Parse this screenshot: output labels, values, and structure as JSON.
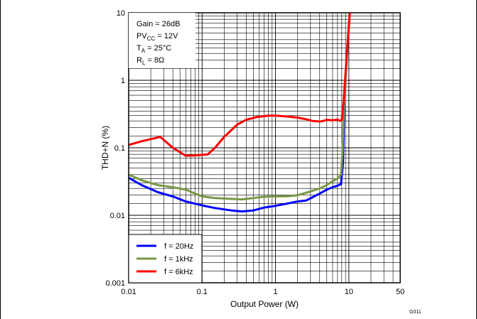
{
  "chart_data": {
    "type": "line",
    "xlabel": "Output Power (W)",
    "ylabel": "THD+N (%)",
    "x_scale": "log",
    "y_scale": "log",
    "xlim": [
      0.01,
      50
    ],
    "ylim": [
      0.001,
      10
    ],
    "x_ticks": [
      {
        "value": 0.01,
        "label": "0.01"
      },
      {
        "value": 0.1,
        "label": "0.1"
      },
      {
        "value": 1,
        "label": "1"
      },
      {
        "value": 10,
        "label": "10"
      },
      {
        "value": 50,
        "label": "50"
      }
    ],
    "y_ticks": [
      {
        "value": 0.001,
        "label": "0.001"
      },
      {
        "value": 0.01,
        "label": "0.01"
      },
      {
        "value": 0.1,
        "label": "0.1"
      },
      {
        "value": 1,
        "label": "1"
      },
      {
        "value": 10,
        "label": "10"
      }
    ],
    "grid": true,
    "legend_position": "bottom-left",
    "conditions": {
      "line1": "Gain = 26dB",
      "line2_main": "PV",
      "line2_sub": "CC",
      "line2_rest": " = 12V",
      "line3_main": "T",
      "line3_sub": "A",
      "line3_rest": " = 25°C",
      "line4_main": "R",
      "line4_sub": "L",
      "line4_rest": " = 8Ω"
    },
    "figure_code": "G011",
    "series": [
      {
        "name": "f = 20Hz",
        "color": "#0000ff",
        "points": [
          [
            0.01,
            0.036
          ],
          [
            0.015,
            0.028
          ],
          [
            0.025,
            0.022
          ],
          [
            0.04,
            0.019
          ],
          [
            0.06,
            0.016
          ],
          [
            0.1,
            0.014
          ],
          [
            0.15,
            0.0128
          ],
          [
            0.25,
            0.0118
          ],
          [
            0.35,
            0.0114
          ],
          [
            0.5,
            0.0118
          ],
          [
            0.7,
            0.013
          ],
          [
            1.0,
            0.0138
          ],
          [
            1.4,
            0.0148
          ],
          [
            2.0,
            0.016
          ],
          [
            2.6,
            0.0165
          ],
          [
            3.2,
            0.0185
          ],
          [
            4.0,
            0.021
          ],
          [
            5.0,
            0.024
          ],
          [
            6.0,
            0.026
          ],
          [
            7.0,
            0.0275
          ],
          [
            7.8,
            0.029
          ],
          [
            8.3,
            0.06
          ],
          [
            8.6,
            0.3
          ],
          [
            9.0,
            1.1
          ],
          [
            9.6,
            3.5
          ],
          [
            10.3,
            10
          ]
        ]
      },
      {
        "name": "f = 1kHz",
        "color": "#779944",
        "points": [
          [
            0.01,
            0.04
          ],
          [
            0.015,
            0.033
          ],
          [
            0.025,
            0.028
          ],
          [
            0.04,
            0.026
          ],
          [
            0.06,
            0.024
          ],
          [
            0.08,
            0.021
          ],
          [
            0.1,
            0.019
          ],
          [
            0.15,
            0.018
          ],
          [
            0.25,
            0.0175
          ],
          [
            0.35,
            0.0172
          ],
          [
            0.5,
            0.018
          ],
          [
            0.7,
            0.0188
          ],
          [
            1.0,
            0.019
          ],
          [
            1.5,
            0.0192
          ],
          [
            2.0,
            0.0198
          ],
          [
            3.0,
            0.0225
          ],
          [
            4.0,
            0.025
          ],
          [
            5.0,
            0.028
          ],
          [
            6.0,
            0.032
          ],
          [
            7.0,
            0.035
          ],
          [
            7.8,
            0.04
          ],
          [
            8.2,
            0.09
          ],
          [
            8.5,
            0.3
          ],
          [
            9.0,
            1.1
          ],
          [
            9.6,
            3.5
          ],
          [
            10.3,
            10
          ]
        ]
      },
      {
        "name": "f = 6kHz",
        "color": "#ff0000",
        "points": [
          [
            0.01,
            0.11
          ],
          [
            0.015,
            0.125
          ],
          [
            0.027,
            0.145
          ],
          [
            0.04,
            0.1
          ],
          [
            0.06,
            0.076
          ],
          [
            0.08,
            0.077
          ],
          [
            0.12,
            0.08
          ],
          [
            0.15,
            0.1
          ],
          [
            0.2,
            0.145
          ],
          [
            0.3,
            0.22
          ],
          [
            0.4,
            0.26
          ],
          [
            0.55,
            0.285
          ],
          [
            0.8,
            0.3
          ],
          [
            1.0,
            0.3
          ],
          [
            1.5,
            0.29
          ],
          [
            2.0,
            0.28
          ],
          [
            2.6,
            0.265
          ],
          [
            3.2,
            0.25
          ],
          [
            4.0,
            0.245
          ],
          [
            4.5,
            0.25
          ],
          [
            5.0,
            0.26
          ],
          [
            6.0,
            0.255
          ],
          [
            7.0,
            0.262
          ],
          [
            7.6,
            0.25
          ],
          [
            8.0,
            0.26
          ],
          [
            8.5,
            0.5
          ],
          [
            9.0,
            1.3
          ],
          [
            9.6,
            3.5
          ],
          [
            10.3,
            10
          ]
        ]
      }
    ]
  }
}
